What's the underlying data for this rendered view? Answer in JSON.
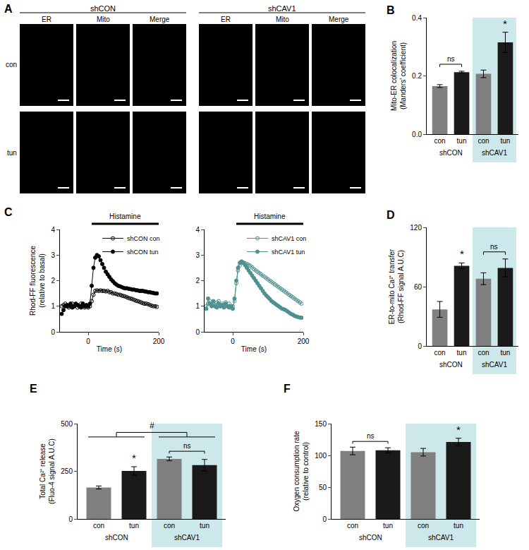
{
  "image_panel": {
    "label": "A",
    "groups": [
      "shCON",
      "shCAV1"
    ],
    "channels": [
      "ER",
      "Mito",
      "Merge"
    ],
    "rows": [
      "con",
      "tun"
    ]
  },
  "chart_data": [
    {
      "label": "B",
      "type": "bar",
      "y_label": [
        "Mito-ER colocalization",
        "(Manders' coefficient)"
      ],
      "categories": [
        "con",
        "tun",
        "con",
        "tun"
      ],
      "values": [
        0.165,
        0.213,
        0.207,
        0.315
      ],
      "errors": [
        0.005,
        0.003,
        0.013,
        0.035
      ],
      "colors": [
        "#808080",
        "#1a1a1a",
        "#808080",
        "#1a1a1a"
      ],
      "ylim": [
        0,
        0.4
      ],
      "yticks": [
        {
          "value": 0,
          "label": "0.0"
        },
        0.2,
        0.4
      ],
      "groups": [
        {
          "name": "shCON",
          "positions": [
            0,
            1
          ]
        },
        {
          "name": "shCAV1",
          "positions": [
            2,
            3
          ],
          "color": "#cde8ea"
        }
      ],
      "annotations": [
        {
          "text": "ns",
          "positions": [
            0,
            1
          ]
        },
        {
          "text": "*",
          "positions": [
            3
          ]
        }
      ]
    },
    {
      "label": "C",
      "type": "line",
      "y_label": [
        "Rhod-FF fluorescence",
        "(relative to basal)"
      ],
      "x_label": "Time (s)",
      "stimulus": {
        "label": "Histamine",
        "start": 10,
        "end": 200
      },
      "xlim": [
        -80,
        200
      ],
      "xticks": [
        0,
        200
      ],
      "ylim": [
        0,
        4
      ],
      "yticks": [
        0,
        1,
        2,
        3,
        4
      ],
      "x": [
        -75,
        -70,
        -65,
        -60,
        -55,
        -50,
        -45,
        -40,
        -35,
        -30,
        -25,
        -20,
        -15,
        -10,
        -5,
        0,
        5,
        10,
        15,
        20,
        25,
        30,
        35,
        40,
        45,
        50,
        55,
        60,
        65,
        70,
        75,
        80,
        85,
        90,
        95,
        100,
        105,
        110,
        115,
        120,
        125,
        130,
        135,
        140,
        145,
        150,
        155,
        160,
        165,
        170,
        175,
        180,
        185,
        190,
        195
      ],
      "series": [
        {
          "name": "shCON con",
          "color": "#000000",
          "marker": "open-circle",
          "line_style": "solid",
          "values": [
            1.0,
            1.05,
            1.1,
            1.0,
            0.95,
            1.05,
            1.1,
            1.0,
            1.05,
            0.95,
            1.0,
            1.1,
            1.05,
            0.95,
            1.0,
            0.95,
            1.0,
            1.2,
            1.45,
            1.6,
            1.62,
            1.6,
            1.62,
            1.6,
            1.6,
            1.58,
            1.6,
            1.55,
            1.55,
            1.5,
            1.5,
            1.48,
            1.45,
            1.45,
            1.42,
            1.4,
            1.38,
            1.35,
            1.32,
            1.3,
            1.28,
            1.25,
            1.22,
            1.2,
            1.18,
            1.15,
            1.12,
            1.1,
            1.1,
            1.08,
            1.05,
            1.02,
            1.0,
            1.0,
            0.98
          ]
        },
        {
          "name": "shCON tun",
          "color": "#000000",
          "marker": "circle",
          "line_style": "solid",
          "values": [
            0.7,
            0.85,
            1.0,
            1.05,
            1.0,
            1.1,
            0.95,
            1.0,
            1.1,
            1.05,
            1.0,
            0.95,
            1.1,
            1.0,
            1.05,
            1.0,
            1.1,
            1.8,
            2.5,
            2.9,
            3.0,
            2.95,
            2.8,
            2.65,
            2.5,
            2.35,
            2.25,
            2.15,
            2.05,
            1.98,
            1.9,
            1.85,
            1.8,
            1.78,
            1.75,
            1.72,
            1.7,
            1.7,
            1.68,
            1.67,
            1.65,
            1.65,
            1.63,
            1.62,
            1.6,
            1.6,
            1.6,
            1.58,
            1.57,
            1.55,
            1.55,
            1.53,
            1.52,
            1.5,
            1.5
          ]
        }
      ]
    },
    {
      "type": "line",
      "stimulus": {
        "label": "Histamine",
        "start": 10,
        "end": 200
      },
      "x_label": "Time (s)",
      "xlim": [
        -80,
        200
      ],
      "xticks": [
        0,
        200
      ],
      "ylim": [
        0,
        4
      ],
      "yticks": [
        0,
        1,
        2,
        3,
        4
      ],
      "x": [
        -75,
        -70,
        -65,
        -60,
        -55,
        -50,
        -45,
        -40,
        -35,
        -30,
        -25,
        -20,
        -15,
        -10,
        -5,
        0,
        5,
        10,
        15,
        20,
        25,
        30,
        35,
        40,
        45,
        50,
        55,
        60,
        65,
        70,
        75,
        80,
        85,
        90,
        95,
        100,
        105,
        110,
        115,
        120,
        125,
        130,
        135,
        140,
        145,
        150,
        155,
        160,
        165,
        170,
        175,
        180,
        185,
        190,
        195
      ],
      "series": [
        {
          "name": "shCAV1 con",
          "color": "#4f9090",
          "marker": "open-circle",
          "line_style": "solid",
          "values": [
            1.0,
            1.1,
            1.2,
            1.05,
            1.1,
            1.0,
            1.15,
            1.2,
            1.0,
            1.1,
            1.05,
            1.15,
            1.0,
            1.1,
            1.0,
            1.0,
            1.2,
            1.9,
            2.4,
            2.6,
            2.7,
            2.7,
            2.68,
            2.65,
            2.62,
            2.58,
            2.52,
            2.45,
            2.4,
            2.35,
            2.3,
            2.25,
            2.2,
            2.15,
            2.1,
            2.05,
            2.0,
            1.95,
            1.9,
            1.85,
            1.8,
            1.75,
            1.7,
            1.65,
            1.6,
            1.55,
            1.5,
            1.45,
            1.4,
            1.35,
            1.3,
            1.25,
            1.2,
            1.15,
            1.1
          ]
        },
        {
          "name": "shCAV1 tun",
          "color": "#4f9090",
          "marker": "circle",
          "line_style": "solid",
          "values": [
            0.9,
            1.3,
            1.1,
            1.0,
            1.2,
            1.0,
            0.95,
            1.1,
            1.0,
            1.05,
            0.95,
            1.1,
            1.0,
            0.95,
            1.0,
            0.9,
            1.3,
            2.0,
            2.5,
            2.7,
            2.75,
            2.7,
            2.6,
            2.5,
            2.4,
            2.3,
            2.2,
            2.1,
            2.0,
            1.9,
            1.8,
            1.7,
            1.6,
            1.5,
            1.42,
            1.35,
            1.28,
            1.2,
            1.15,
            1.1,
            1.05,
            1.0,
            0.95,
            0.9,
            0.88,
            0.85,
            0.8,
            0.75,
            0.7,
            0.67,
            0.63,
            0.6,
            0.58,
            0.56,
            0.55
          ]
        }
      ]
    },
    {
      "label": "D",
      "type": "bar",
      "y_label": [
        "ER-to-mito Ca²⁺ transfer",
        "(Rhod-FF signal A.U.C)"
      ],
      "categories": [
        "con",
        "tun",
        "con",
        "tun"
      ],
      "values": [
        37,
        81,
        68,
        79
      ],
      "errors": [
        8,
        3,
        6,
        9
      ],
      "colors": [
        "#808080",
        "#1a1a1a",
        "#808080",
        "#1a1a1a"
      ],
      "ylim": [
        0,
        120
      ],
      "yticks": [
        0,
        60,
        120
      ],
      "groups": [
        {
          "name": "shCON",
          "positions": [
            0,
            1
          ]
        },
        {
          "name": "shCAV1",
          "positions": [
            2,
            3
          ],
          "color": "#cde8ea"
        }
      ],
      "annotations": [
        {
          "text": "*",
          "positions": [
            1
          ]
        },
        {
          "text": "ns",
          "positions": [
            2,
            3
          ]
        }
      ]
    },
    {
      "label": "E",
      "type": "bar",
      "y_label": [
        "Total Ca²⁺ release",
        "(Fluo-4 signal A.U.C)"
      ],
      "categories": [
        "con",
        "tun",
        "con",
        "tun"
      ],
      "values": [
        165,
        252,
        315,
        282
      ],
      "errors": [
        8,
        22,
        10,
        30
      ],
      "colors": [
        "#808080",
        "#1a1a1a",
        "#808080",
        "#1a1a1a"
      ],
      "ylim": [
        0,
        500
      ],
      "yticks": [
        0,
        250,
        500
      ],
      "groups": [
        {
          "name": "shCON",
          "positions": [
            0,
            1
          ]
        },
        {
          "name": "shCAV1",
          "positions": [
            2,
            3
          ],
          "color": "#cde8ea"
        }
      ],
      "annotations": [
        {
          "text": "*",
          "positions": [
            1
          ]
        },
        {
          "text": "ns",
          "positions": [
            2,
            3
          ]
        },
        {
          "text": "#",
          "groups": [
            0,
            1
          ]
        }
      ]
    },
    {
      "label": "F",
      "type": "bar",
      "y_label": [
        "Oxygen consumption rate",
        "(relative to control)"
      ],
      "categories": [
        "con",
        "tun",
        "con",
        "tun"
      ],
      "values": [
        107,
        108,
        105,
        121
      ],
      "errors": [
        6,
        4,
        6,
        6
      ],
      "colors": [
        "#808080",
        "#1a1a1a",
        "#808080",
        "#1a1a1a"
      ],
      "ylim": [
        0,
        150
      ],
      "yticks": [
        0,
        50,
        100,
        150
      ],
      "groups": [
        {
          "name": "shCON",
          "positions": [
            0,
            1
          ]
        },
        {
          "name": "shCAV1",
          "positions": [
            2,
            3
          ],
          "color": "#cde8ea"
        }
      ],
      "annotations": [
        {
          "text": "ns",
          "positions": [
            0,
            1
          ]
        },
        {
          "text": "*",
          "positions": [
            3
          ]
        }
      ]
    }
  ]
}
